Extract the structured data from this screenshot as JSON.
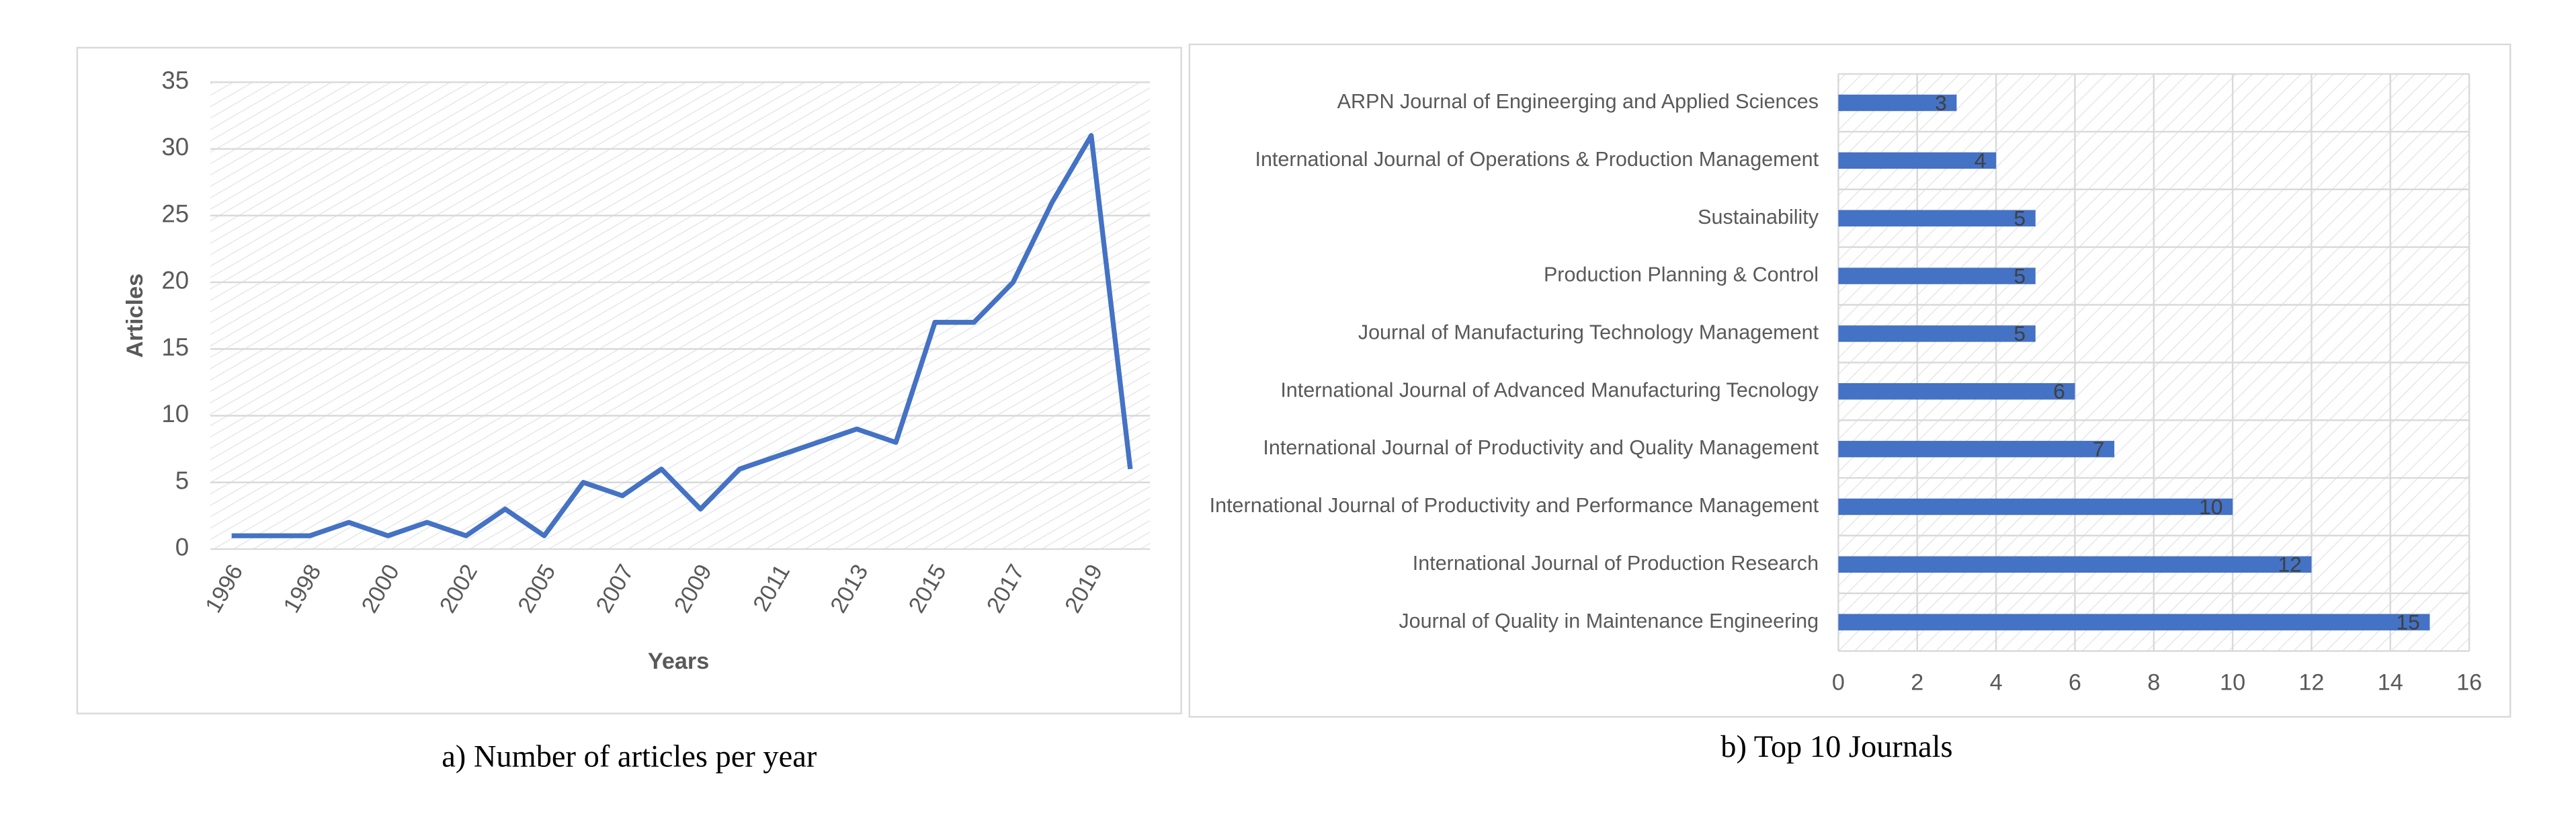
{
  "chart_data": [
    {
      "type": "line",
      "caption": "a) Number of articles per year",
      "x_label": "Years",
      "y_label": "Articles",
      "categories": [
        "1996",
        null,
        "1998",
        null,
        "2000",
        null,
        "2002",
        null,
        "2005",
        null,
        "2007",
        null,
        "2009",
        null,
        "2011",
        null,
        "2013",
        null,
        "2015",
        null,
        "2017",
        null,
        "2019",
        null
      ],
      "values": [
        1,
        1,
        1,
        2,
        1,
        2,
        1,
        3,
        1,
        5,
        4,
        6,
        3,
        6,
        7,
        8,
        9,
        8,
        17,
        17,
        20,
        26,
        31,
        6
      ],
      "color": "#4472c4",
      "ylim": [
        0,
        35
      ],
      "yticks": [
        0,
        5,
        10,
        15,
        20,
        25,
        30,
        35
      ],
      "grid": true
    },
    {
      "type": "hbar",
      "caption": "b) Top 10 Journals",
      "categories": [
        "ARPN Journal of Engineerging and Applied Sciences",
        "International Journal of Operations & Production Management",
        "Sustainability",
        "Production Planning & Control",
        "Journal of Manufacturing Technology Management",
        "International Journal of Advanced Manufacturing Tecnology",
        "International Journal of Productivity and Quality Management",
        "International Journal of Productivity and Performance Management",
        "International Journal of Production Research",
        "Journal of Quality in Maintenance Engineering"
      ],
      "values": [
        3,
        4,
        5,
        5,
        5,
        6,
        7,
        10,
        12,
        15
      ],
      "color": "#4472c4",
      "xlim": [
        0,
        16
      ],
      "xticks": [
        0,
        2,
        4,
        6,
        8,
        10,
        12,
        14,
        16
      ],
      "grid": true
    }
  ]
}
